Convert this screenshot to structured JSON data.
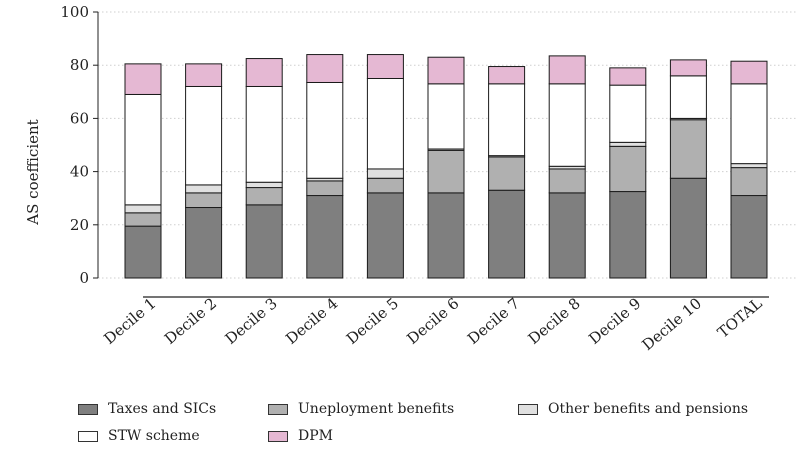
{
  "chart_data": {
    "type": "bar",
    "stacked": true,
    "ylabel": "AS coefficient",
    "ylim": [
      0,
      100
    ],
    "yticks": [
      0,
      20,
      40,
      60,
      80,
      100
    ],
    "grid": true,
    "legend_position": "bottom",
    "categories": [
      "Decile 1",
      "Decile 2",
      "Decile 3",
      "Decile 4",
      "Decile 5",
      "Decile 6",
      "Decile 7",
      "Decile 8",
      "Decile 9",
      "Decile 10",
      "TOTAL"
    ],
    "series": [
      {
        "name": "Taxes and SICs",
        "color": "#7f7f7f",
        "values": [
          19.5,
          26.5,
          27.5,
          31,
          32,
          32,
          33,
          32,
          32.5,
          37.5,
          31
        ]
      },
      {
        "name": "Uneployment benefits",
        "color": "#b0b0b0",
        "values": [
          5,
          5.5,
          6.5,
          5.5,
          5.5,
          16,
          12.5,
          9,
          17,
          22,
          10.5
        ]
      },
      {
        "name": "Other benefits and pensions",
        "color": "#e0e0e0",
        "values": [
          3,
          3,
          2,
          1,
          3.5,
          0.5,
          0.5,
          1,
          1.5,
          0.5,
          1.5
        ]
      },
      {
        "name": "STW scheme",
        "color": "#ffffff",
        "values": [
          41.5,
          37,
          36,
          36,
          34,
          24.5,
          27,
          31,
          21.5,
          16,
          30
        ]
      },
      {
        "name": "DPM",
        "color": "#e5b8d3",
        "values": [
          11.5,
          8.5,
          10.5,
          10.5,
          9,
          10,
          6.5,
          10.5,
          6.5,
          6,
          8.5
        ]
      }
    ]
  }
}
